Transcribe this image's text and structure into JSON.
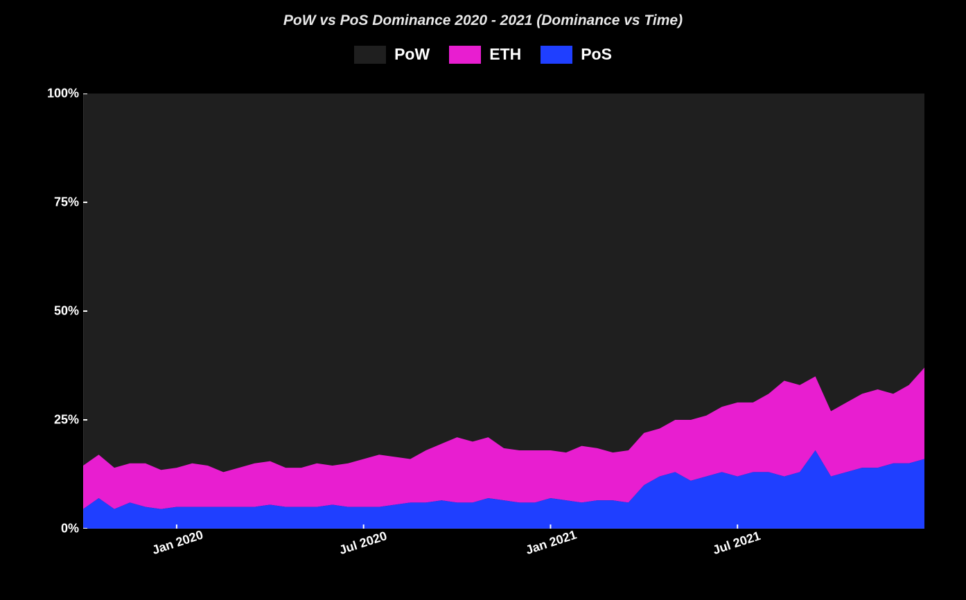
{
  "chart": {
    "type": "stacked-area",
    "title": "PoW vs PoS Dominance 2020 - 2021 (Dominance vs Time)",
    "title_fontsize": 21,
    "title_color": "#e8e8e8",
    "title_italic": true,
    "background_color_page": "#000000",
    "plot_background_color": "#1f1f1f",
    "axis_line_color": "#ffffff",
    "tick_font_color": "#ffffff",
    "tick_fontsize": 18,
    "tick_fontweight": 700,
    "ylim": [
      0,
      100
    ],
    "y_ticks": [
      0,
      25,
      50,
      75,
      100
    ],
    "y_tick_labels": [
      "0%",
      "25%",
      "50%",
      "75%",
      "100%"
    ],
    "x_range_months": 27,
    "x_tick_months": [
      3,
      9,
      15,
      21
    ],
    "x_tick_labels": [
      "Jan 2020",
      "Jul 2020",
      "Jan 2021",
      "Jul 2021"
    ],
    "x_tick_rotation_deg": -18,
    "legend": {
      "swatch_w": 46,
      "swatch_h": 26,
      "label_fontsize": 23,
      "items": [
        {
          "name": "PoW",
          "color": "#1f1f1f"
        },
        {
          "name": "ETH",
          "color": "#e81ed0"
        },
        {
          "name": "PoS",
          "color": "#1f3fff"
        }
      ]
    },
    "series_stack_order_bottom_to_top": [
      "PoS",
      "ETH",
      "PoW"
    ],
    "series_colors": {
      "PoW": "#1f1f1f",
      "ETH": "#e81ed0",
      "PoS": "#1f3fff"
    },
    "n_points": 55,
    "pos_values": [
      4.5,
      7,
      4.5,
      6,
      5,
      4.5,
      5,
      5,
      5,
      5,
      5,
      5,
      5.5,
      5,
      5,
      5,
      5.5,
      5,
      5,
      5,
      5.5,
      6,
      6,
      6.5,
      6,
      6,
      7,
      6.5,
      6,
      6,
      7,
      6.5,
      6,
      6.5,
      6.5,
      6,
      10,
      12,
      13,
      11,
      12,
      13,
      12,
      13,
      13,
      12,
      13,
      18,
      12,
      13,
      14,
      14,
      15,
      15,
      16
    ],
    "eth_values": [
      10,
      10,
      9.5,
      9,
      10,
      9,
      9,
      10,
      9.5,
      8,
      9,
      10,
      10,
      9,
      9,
      10,
      9,
      10,
      11,
      12,
      11,
      10,
      12,
      13,
      15,
      14,
      14,
      12,
      12,
      12,
      11,
      11,
      13,
      12,
      11,
      12,
      12,
      11,
      12,
      14,
      14,
      15,
      17,
      16,
      18,
      22,
      20,
      17,
      15,
      16,
      17,
      18,
      16,
      18,
      21
    ],
    "pow_values": [
      85.5,
      83,
      86,
      85,
      85,
      86.5,
      86,
      85,
      85.5,
      87,
      86,
      85,
      84.5,
      86,
      86,
      85,
      85.5,
      85,
      84,
      83,
      83.5,
      84,
      82,
      80.5,
      79,
      80,
      79,
      81.5,
      82,
      82,
      82,
      82.5,
      81,
      81.5,
      82.5,
      82,
      78,
      77,
      75,
      75,
      74,
      72,
      71,
      71,
      69,
      66,
      67,
      65,
      73,
      71,
      69,
      68,
      69,
      67,
      63
    ]
  }
}
